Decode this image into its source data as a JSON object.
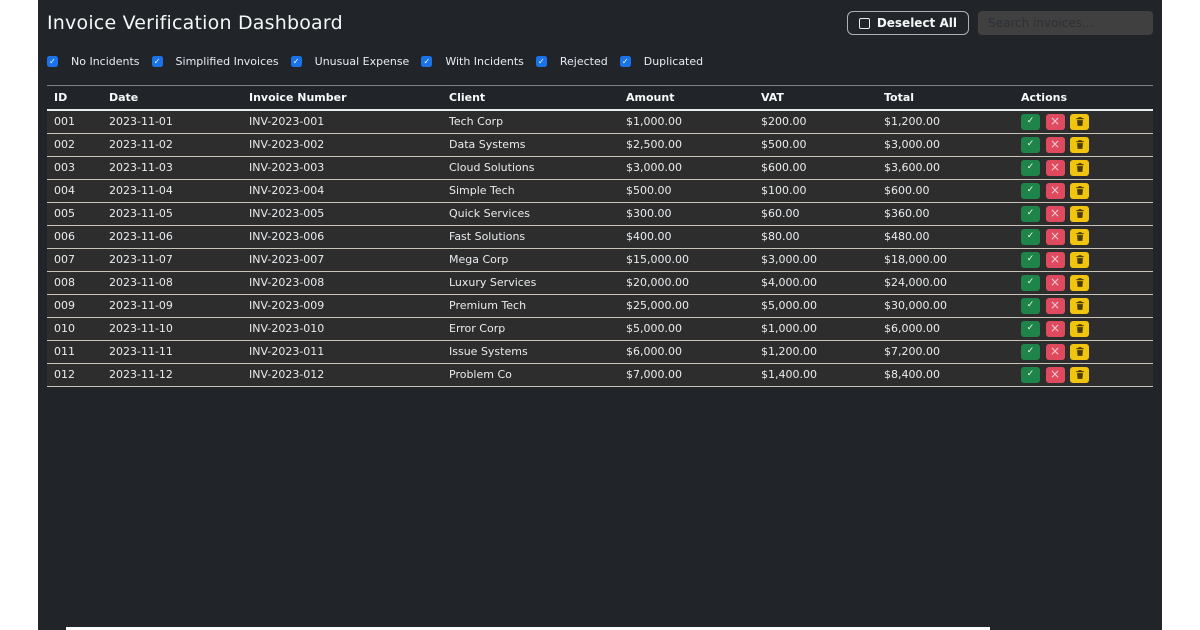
{
  "header": {
    "title": "Invoice Verification Dashboard",
    "deselect_all_label": "Deselect All",
    "search_placeholder": "Search invoices..."
  },
  "filters": [
    {
      "label": "No Incidents",
      "checked": true
    },
    {
      "label": "Simplified Invoices",
      "checked": true
    },
    {
      "label": "Unusual Expense",
      "checked": true
    },
    {
      "label": "With Incidents",
      "checked": true
    },
    {
      "label": "Rejected",
      "checked": true
    },
    {
      "label": "Duplicated",
      "checked": true
    }
  ],
  "table": {
    "columns": [
      "ID",
      "Date",
      "Invoice Number",
      "Client",
      "Amount",
      "VAT",
      "Total",
      "Actions"
    ],
    "action_icons": {
      "approve": "✓",
      "reject": "×",
      "delete": "trash-icon"
    },
    "rows": [
      {
        "id": "001",
        "date": "2023-11-01",
        "invoice_number": "INV-2023-001",
        "client": "Tech Corp",
        "amount": "$1,000.00",
        "vat": "$200.00",
        "total": "$1,200.00"
      },
      {
        "id": "002",
        "date": "2023-11-02",
        "invoice_number": "INV-2023-002",
        "client": "Data Systems",
        "amount": "$2,500.00",
        "vat": "$500.00",
        "total": "$3,000.00"
      },
      {
        "id": "003",
        "date": "2023-11-03",
        "invoice_number": "INV-2023-003",
        "client": "Cloud Solutions",
        "amount": "$3,000.00",
        "vat": "$600.00",
        "total": "$3,600.00"
      },
      {
        "id": "004",
        "date": "2023-11-04",
        "invoice_number": "INV-2023-004",
        "client": "Simple Tech",
        "amount": "$500.00",
        "vat": "$100.00",
        "total": "$600.00"
      },
      {
        "id": "005",
        "date": "2023-11-05",
        "invoice_number": "INV-2023-005",
        "client": "Quick Services",
        "amount": "$300.00",
        "vat": "$60.00",
        "total": "$360.00"
      },
      {
        "id": "006",
        "date": "2023-11-06",
        "invoice_number": "INV-2023-006",
        "client": "Fast Solutions",
        "amount": "$400.00",
        "vat": "$80.00",
        "total": "$480.00"
      },
      {
        "id": "007",
        "date": "2023-11-07",
        "invoice_number": "INV-2023-007",
        "client": "Mega Corp",
        "amount": "$15,000.00",
        "vat": "$3,000.00",
        "total": "$18,000.00"
      },
      {
        "id": "008",
        "date": "2023-11-08",
        "invoice_number": "INV-2023-008",
        "client": "Luxury Services",
        "amount": "$20,000.00",
        "vat": "$4,000.00",
        "total": "$24,000.00"
      },
      {
        "id": "009",
        "date": "2023-11-09",
        "invoice_number": "INV-2023-009",
        "client": "Premium Tech",
        "amount": "$25,000.00",
        "vat": "$5,000.00",
        "total": "$30,000.00"
      },
      {
        "id": "010",
        "date": "2023-11-10",
        "invoice_number": "INV-2023-010",
        "client": "Error Corp",
        "amount": "$5,000.00",
        "vat": "$1,000.00",
        "total": "$6,000.00"
      },
      {
        "id": "011",
        "date": "2023-11-11",
        "invoice_number": "INV-2023-011",
        "client": "Issue Systems",
        "amount": "$6,000.00",
        "vat": "$1,200.00",
        "total": "$7,200.00"
      },
      {
        "id": "012",
        "date": "2023-11-12",
        "invoice_number": "INV-2023-012",
        "client": "Problem Co",
        "amount": "$7,000.00",
        "vat": "$1,400.00",
        "total": "$8,400.00"
      }
    ]
  },
  "colors": {
    "panel_bg": "#212529",
    "row_bg": "#2d2d2d",
    "checkbox_blue": "#1a73e8",
    "approve_green": "#1e8449",
    "reject_red": "#e04a5f",
    "delete_yellow": "#f1c40f"
  }
}
